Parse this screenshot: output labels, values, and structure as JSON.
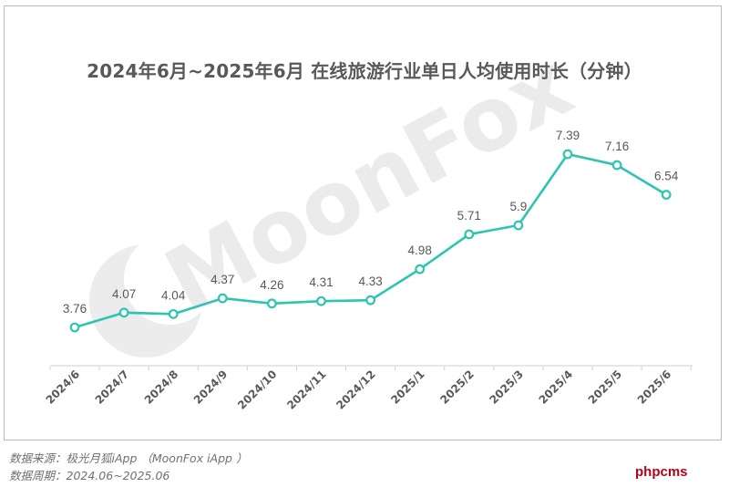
{
  "chart_data": {
    "type": "line",
    "title": "2024年6月~2025年6月 在线旅游行业单日人均使用时长（分钟）",
    "xlabel": "",
    "ylabel": "",
    "categories": [
      "2024/6",
      "2024/7",
      "2024/8",
      "2024/9",
      "2024/10",
      "2024/11",
      "2024/12",
      "2025/1",
      "2025/2",
      "2025/3",
      "2025/4",
      "2025/5",
      "2025/6"
    ],
    "series": [
      {
        "values": [
          3.76,
          4.07,
          4.04,
          4.37,
          4.26,
          4.31,
          4.33,
          4.98,
          5.71,
          5.9,
          7.39,
          7.16,
          6.54
        ],
        "labels": [
          "3.76",
          "4.07",
          "4.04",
          "4.37",
          "4.26",
          "4.31",
          "4.33",
          "4.98",
          "5.71",
          "5.9",
          "7.39",
          "7.16",
          "6.54"
        ],
        "color": "#2ec4b0"
      }
    ],
    "grid": false,
    "legend": "none",
    "data_labels": true
  },
  "watermark": {
    "text": "MoonFox",
    "color": "#ebebeb"
  },
  "footnotes": {
    "source": "数据来源：极光月狐iApp （MoonFox iApp ）",
    "period": "数据周期：2024.06~2025.06"
  },
  "site_mark": "phpcms",
  "colors": {
    "line": "#2ec4b0",
    "marker_fill": "#ffffff",
    "text": "#595959",
    "axis": "#cfcfcf"
  }
}
